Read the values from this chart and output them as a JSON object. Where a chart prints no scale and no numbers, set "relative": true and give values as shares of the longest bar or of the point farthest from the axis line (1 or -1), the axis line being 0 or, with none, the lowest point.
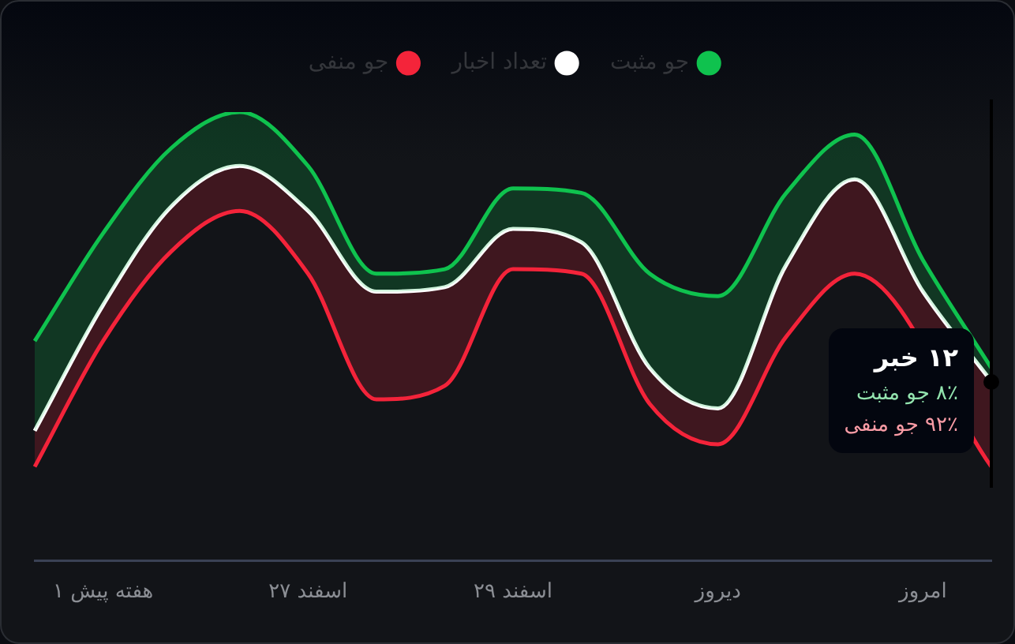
{
  "chart_data": {
    "type": "area",
    "relative": true,
    "legend": "top",
    "marker": "none",
    "categories": [
      null,
      "۱ هفته پیش",
      null,
      null,
      "۲۷ اسفند",
      null,
      null,
      "۲۹ اسفند",
      null,
      null,
      "دیروز",
      null,
      null,
      "امروز",
      null
    ],
    "series": [
      {
        "name": "جو مثبت",
        "color": "#0fc24e",
        "values": [
          0.49,
          0.73,
          0.92,
          1,
          0.88,
          0.64,
          0.65,
          0.83,
          0.82,
          0.64,
          0.59,
          0.82,
          0.95,
          0.67,
          0.43
        ]
      },
      {
        "name": "تعداد اخبار",
        "color": "#ffffff",
        "values": [
          0.29,
          0.57,
          0.79,
          0.88,
          0.78,
          0.6,
          0.61,
          0.74,
          0.71,
          0.43,
          0.34,
          0.66,
          0.85,
          0.6,
          0.4
        ]
      },
      {
        "name": "جو منفی",
        "type": "line",
        "color": "#f4243a",
        "values": [
          0.21,
          0.49,
          0.69,
          0.78,
          0.64,
          0.36,
          0.39,
          0.65,
          0.64,
          0.35,
          0.26,
          0.5,
          0.64,
          null,
          0.21
        ]
      }
    ],
    "annotations": [
      "۱۲ خبر",
      "۸٪ جو مثبت",
      "۹۲٪ جو منفی"
    ]
  }
}
